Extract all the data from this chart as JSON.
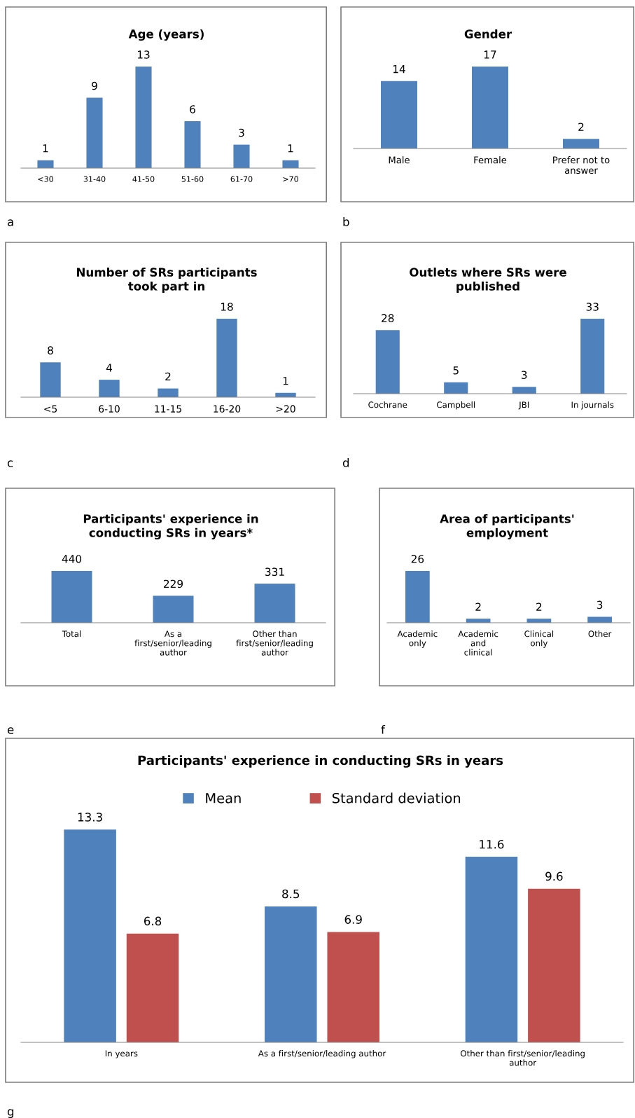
{
  "chart_data": [
    {
      "type": "bar",
      "title": "Age (years)",
      "categories": [
        "<30",
        "31-40",
        "41-50",
        "51-60",
        "61-70",
        ">70"
      ],
      "values": [
        1,
        9,
        13,
        6,
        3,
        1
      ],
      "color": "#4f81bd",
      "data_labels": true,
      "tick_labels": "x",
      "annotations": [
        "a"
      ]
    },
    {
      "type": "bar",
      "title": "Gender",
      "categories": [
        "Male",
        "Female",
        "Prefer not to\nanswer"
      ],
      "values": [
        14,
        17,
        2
      ],
      "color": "#4f81bd",
      "data_labels": true,
      "tick_labels": "x",
      "annotations": [
        "b"
      ]
    },
    {
      "type": "bar",
      "title": "Number of SRs participants\ntook part in",
      "categories": [
        "<5",
        "6-10",
        "11-15",
        "16-20",
        ">20"
      ],
      "values": [
        8,
        4,
        2,
        18,
        1
      ],
      "color": "#4f81bd",
      "data_labels": true,
      "tick_labels": "x",
      "annotations": [
        "c"
      ]
    },
    {
      "type": "bar",
      "title": "Outlets where SRs were\npublished",
      "categories": [
        "Cochrane",
        "Campbell",
        "JBI",
        "In journals"
      ],
      "values": [
        28,
        5,
        3,
        33
      ],
      "color": "#4f81bd",
      "data_labels": true,
      "tick_labels": "x",
      "annotations": [
        "d"
      ]
    },
    {
      "type": "bar",
      "title": "Participants' experience in\nconducting SRs in years*",
      "categories": [
        "Total",
        "As a\nfirst/senior/leading\nauthor",
        "Other than\nfirst/senior/leading\nauthor"
      ],
      "values": [
        440,
        229,
        331
      ],
      "color": "#4f81bd",
      "data_labels": true,
      "tick_labels": "x",
      "annotations": [
        "e"
      ]
    },
    {
      "type": "bar",
      "title": "Area of participants'\nemployment",
      "categories": [
        "Academic\nonly",
        "Academic\nand\nclinical",
        "Clinical\nonly",
        "Other"
      ],
      "values": [
        26,
        2,
        2,
        3
      ],
      "color": "#4f81bd",
      "data_labels": true,
      "tick_labels": "x",
      "annotations": [
        "f"
      ]
    },
    {
      "type": "bar",
      "title": "Participants' experience in conducting SRs in years",
      "categories": [
        "In years",
        "As a first/senior/leading author",
        "Other than first/senior/leading\nauthor"
      ],
      "series": [
        {
          "name": "Mean",
          "color": "#4f81bd",
          "values": [
            13.3,
            8.5,
            11.6
          ]
        },
        {
          "name": "Standard deviation",
          "color": "#c0504d",
          "values": [
            6.8,
            6.9,
            9.6
          ]
        }
      ],
      "data_labels": true,
      "tick_labels": "x",
      "legend": "top",
      "annotations": [
        "g"
      ]
    }
  ]
}
